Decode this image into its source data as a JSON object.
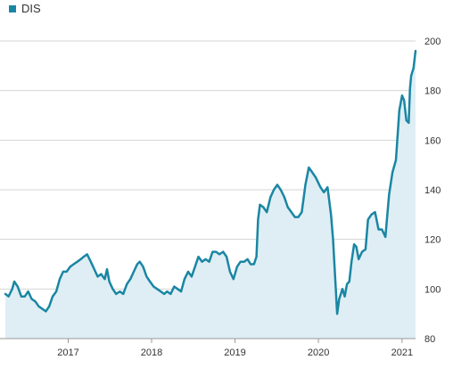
{
  "legend": {
    "label": "DIS"
  },
  "colors": {
    "line": "#1a86a3",
    "fill": "#deeef4",
    "grid": "#d4d4d4",
    "axis": "#999999"
  },
  "chart_data": {
    "type": "area",
    "title": "",
    "xlabel": "",
    "ylabel": "",
    "grid": true,
    "legend_position": "top-left",
    "ylim": [
      80,
      200
    ],
    "xlim": [
      "2016-04-01",
      "2021-03-01"
    ],
    "yticks": [
      80,
      100,
      120,
      140,
      160,
      180,
      200
    ],
    "xticks": [
      {
        "label": "2017",
        "date": "2017-01-01"
      },
      {
        "label": "2018",
        "date": "2018-01-01"
      },
      {
        "label": "2019",
        "date": "2019-01-01"
      },
      {
        "label": "2020",
        "date": "2020-01-01"
      },
      {
        "label": "2021",
        "date": "2021-01-01"
      }
    ],
    "series": [
      {
        "name": "DIS",
        "points": [
          [
            "2016-04-01",
            98
          ],
          [
            "2016-04-15",
            97
          ],
          [
            "2016-05-01",
            100
          ],
          [
            "2016-05-10",
            103
          ],
          [
            "2016-05-25",
            101
          ],
          [
            "2016-06-10",
            97
          ],
          [
            "2016-06-25",
            97
          ],
          [
            "2016-07-10",
            99
          ],
          [
            "2016-07-25",
            96
          ],
          [
            "2016-08-10",
            95
          ],
          [
            "2016-08-25",
            93
          ],
          [
            "2016-09-10",
            92
          ],
          [
            "2016-09-25",
            91
          ],
          [
            "2016-10-10",
            93
          ],
          [
            "2016-10-25",
            97
          ],
          [
            "2016-11-10",
            99
          ],
          [
            "2016-11-25",
            104
          ],
          [
            "2016-12-10",
            107
          ],
          [
            "2016-12-25",
            107
          ],
          [
            "2017-01-10",
            109
          ],
          [
            "2017-01-25",
            110
          ],
          [
            "2017-02-10",
            111
          ],
          [
            "2017-02-25",
            112
          ],
          [
            "2017-03-10",
            113
          ],
          [
            "2017-03-25",
            114
          ],
          [
            "2017-04-10",
            111
          ],
          [
            "2017-04-25",
            108
          ],
          [
            "2017-05-10",
            105
          ],
          [
            "2017-05-25",
            106
          ],
          [
            "2017-06-10",
            104
          ],
          [
            "2017-06-20",
            108
          ],
          [
            "2017-06-30",
            103
          ],
          [
            "2017-07-15",
            100
          ],
          [
            "2017-07-30",
            98
          ],
          [
            "2017-08-15",
            99
          ],
          [
            "2017-08-30",
            98
          ],
          [
            "2017-09-15",
            102
          ],
          [
            "2017-09-30",
            104
          ],
          [
            "2017-10-15",
            107
          ],
          [
            "2017-10-30",
            110
          ],
          [
            "2017-11-10",
            111
          ],
          [
            "2017-11-25",
            109
          ],
          [
            "2017-12-10",
            105
          ],
          [
            "2017-12-25",
            103
          ],
          [
            "2018-01-10",
            101
          ],
          [
            "2018-01-25",
            100
          ],
          [
            "2018-02-10",
            99
          ],
          [
            "2018-02-25",
            98
          ],
          [
            "2018-03-10",
            99
          ],
          [
            "2018-03-25",
            98
          ],
          [
            "2018-04-10",
            101
          ],
          [
            "2018-04-25",
            100
          ],
          [
            "2018-05-10",
            99
          ],
          [
            "2018-05-25",
            104
          ],
          [
            "2018-06-10",
            107
          ],
          [
            "2018-06-25",
            105
          ],
          [
            "2018-07-10",
            109
          ],
          [
            "2018-07-25",
            113
          ],
          [
            "2018-08-10",
            111
          ],
          [
            "2018-08-25",
            112
          ],
          [
            "2018-09-10",
            111
          ],
          [
            "2018-09-25",
            115
          ],
          [
            "2018-10-10",
            115
          ],
          [
            "2018-10-25",
            114
          ],
          [
            "2018-11-10",
            115
          ],
          [
            "2018-11-25",
            113
          ],
          [
            "2018-12-10",
            107
          ],
          [
            "2018-12-25",
            104
          ],
          [
            "2019-01-10",
            109
          ],
          [
            "2019-01-25",
            111
          ],
          [
            "2019-02-10",
            111
          ],
          [
            "2019-02-25",
            112
          ],
          [
            "2019-03-10",
            110
          ],
          [
            "2019-03-25",
            110
          ],
          [
            "2019-04-05",
            113
          ],
          [
            "2019-04-12",
            128
          ],
          [
            "2019-04-20",
            134
          ],
          [
            "2019-05-05",
            133
          ],
          [
            "2019-05-20",
            131
          ],
          [
            "2019-06-05",
            137
          ],
          [
            "2019-06-20",
            140
          ],
          [
            "2019-07-05",
            142
          ],
          [
            "2019-07-20",
            140
          ],
          [
            "2019-08-05",
            137
          ],
          [
            "2019-08-20",
            133
          ],
          [
            "2019-09-05",
            131
          ],
          [
            "2019-09-20",
            129
          ],
          [
            "2019-10-05",
            129
          ],
          [
            "2019-10-20",
            131
          ],
          [
            "2019-11-05",
            142
          ],
          [
            "2019-11-20",
            149
          ],
          [
            "2019-12-05",
            147
          ],
          [
            "2019-12-20",
            145
          ],
          [
            "2020-01-10",
            141
          ],
          [
            "2020-01-25",
            139
          ],
          [
            "2020-02-10",
            141
          ],
          [
            "2020-02-25",
            130
          ],
          [
            "2020-03-05",
            120
          ],
          [
            "2020-03-15",
            103
          ],
          [
            "2020-03-23",
            90
          ],
          [
            "2020-04-01",
            96
          ],
          [
            "2020-04-15",
            100
          ],
          [
            "2020-04-25",
            97
          ],
          [
            "2020-05-05",
            102
          ],
          [
            "2020-05-15",
            103
          ],
          [
            "2020-05-25",
            111
          ],
          [
            "2020-06-05",
            118
          ],
          [
            "2020-06-15",
            117
          ],
          [
            "2020-06-25",
            112
          ],
          [
            "2020-07-10",
            115
          ],
          [
            "2020-07-25",
            116
          ],
          [
            "2020-08-05",
            128
          ],
          [
            "2020-08-20",
            130
          ],
          [
            "2020-09-05",
            131
          ],
          [
            "2020-09-20",
            124
          ],
          [
            "2020-10-05",
            124
          ],
          [
            "2020-10-20",
            121
          ],
          [
            "2020-11-05",
            138
          ],
          [
            "2020-11-20",
            147
          ],
          [
            "2020-12-05",
            152
          ],
          [
            "2020-12-20",
            172
          ],
          [
            "2021-01-01",
            178
          ],
          [
            "2021-01-10",
            176
          ],
          [
            "2021-01-20",
            168
          ],
          [
            "2021-01-30",
            167
          ],
          [
            "2021-02-05",
            181
          ],
          [
            "2021-02-10",
            186
          ],
          [
            "2021-02-20",
            189
          ],
          [
            "2021-03-01",
            196
          ]
        ]
      }
    ]
  }
}
